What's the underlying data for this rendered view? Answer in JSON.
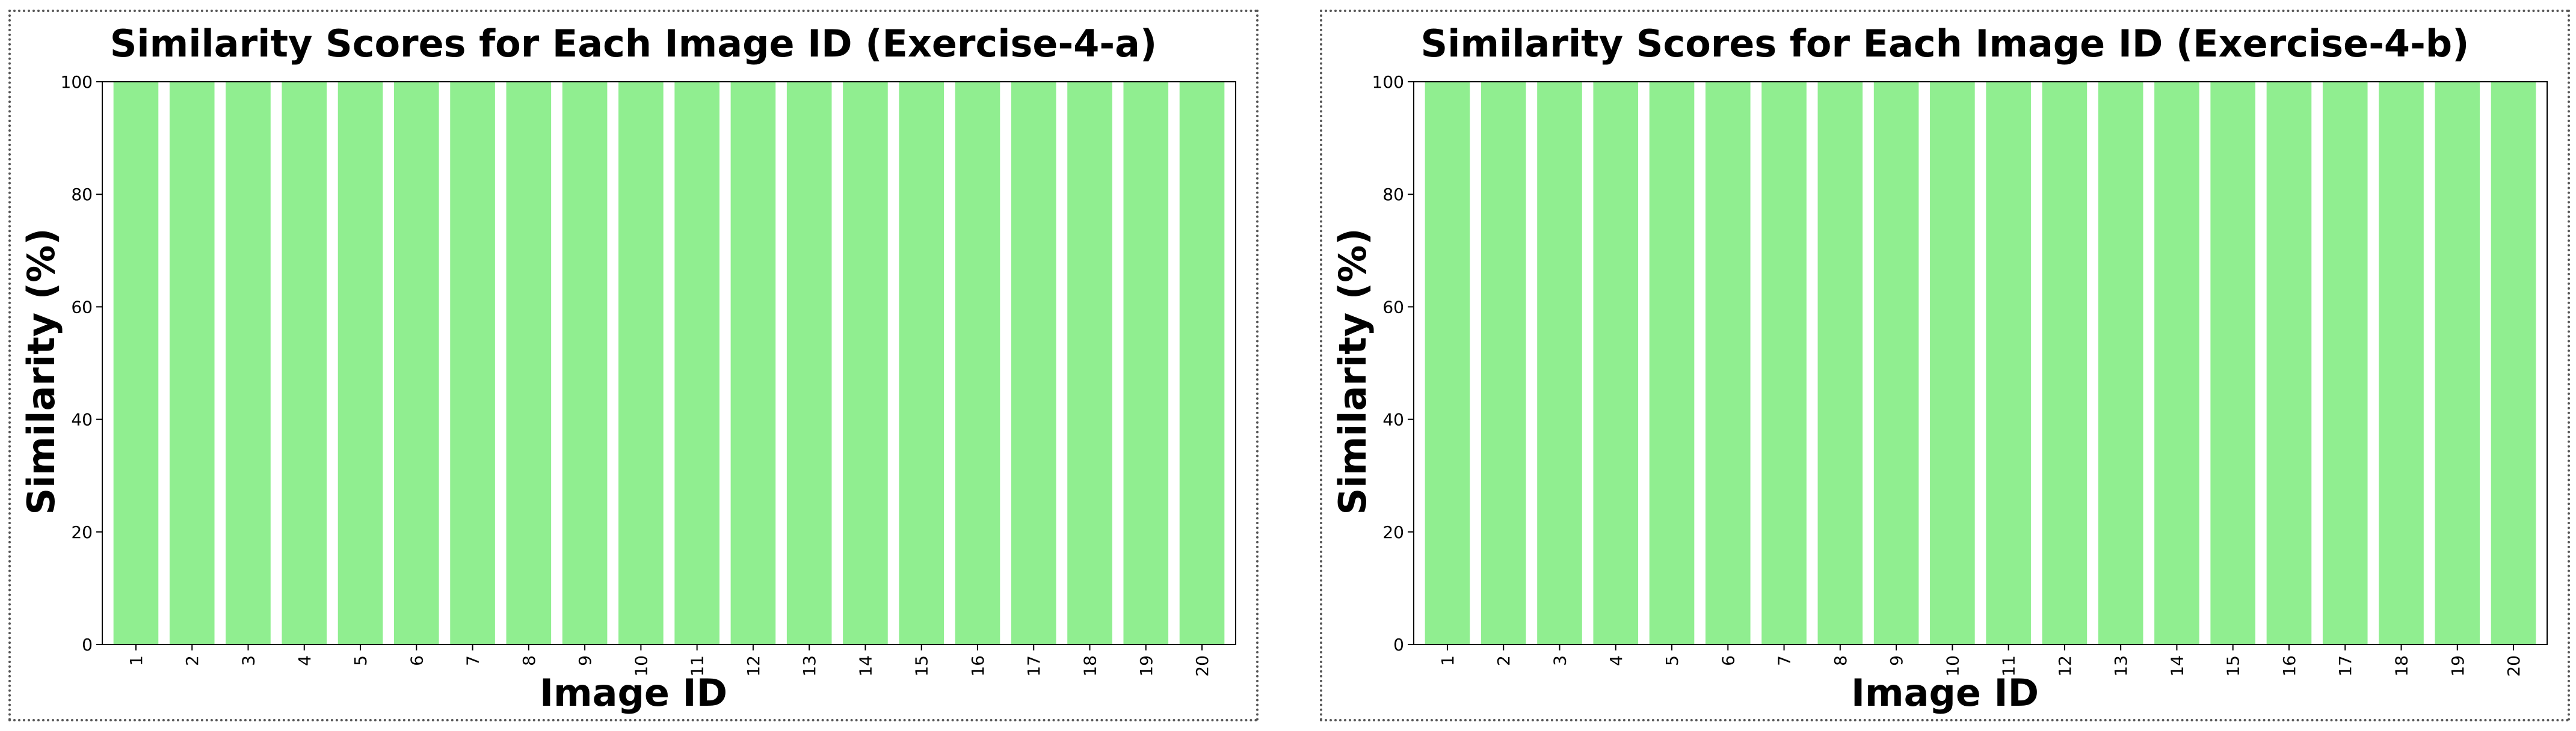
{
  "colors": {
    "bar": "#90ee90",
    "axis": "#000000",
    "border": "#555555",
    "background": "#ffffff"
  },
  "chart_data": [
    {
      "type": "bar",
      "title": "Similarity Scores for Each Image ID (Exercise-4-a)",
      "xlabel": "Image ID",
      "ylabel": "Similarity (%)",
      "categories": [
        "1",
        "2",
        "3",
        "4",
        "5",
        "6",
        "7",
        "8",
        "9",
        "10",
        "11",
        "12",
        "13",
        "14",
        "15",
        "16",
        "17",
        "18",
        "19",
        "20"
      ],
      "values": [
        100,
        100,
        100,
        100,
        100,
        100,
        100,
        100,
        100,
        100,
        100,
        100,
        100,
        100,
        100,
        100,
        100,
        100,
        100,
        100
      ],
      "ylim": [
        0,
        100
      ],
      "yticks": [
        0,
        20,
        40,
        60,
        80,
        100
      ],
      "ytick_labels": [
        "0",
        "20",
        "40",
        "60",
        "80",
        "100"
      ],
      "grid": false,
      "legend": "none"
    },
    {
      "type": "bar",
      "title": "Similarity Scores for Each Image ID (Exercise-4-b)",
      "xlabel": "Image ID",
      "ylabel": "Similarity (%)",
      "categories": [
        "1",
        "2",
        "3",
        "4",
        "5",
        "6",
        "7",
        "8",
        "9",
        "10",
        "11",
        "12",
        "13",
        "14",
        "15",
        "16",
        "17",
        "18",
        "19",
        "20"
      ],
      "values": [
        100,
        100,
        100,
        100,
        100,
        100,
        100,
        100,
        100,
        100,
        100,
        100,
        100,
        100,
        100,
        100,
        100,
        100,
        100,
        100
      ],
      "ylim": [
        0,
        100
      ],
      "yticks": [
        0,
        20,
        40,
        60,
        80,
        100
      ],
      "ytick_labels": [
        "0",
        "20",
        "40",
        "60",
        "80",
        "100"
      ],
      "grid": false,
      "legend": "none"
    }
  ]
}
